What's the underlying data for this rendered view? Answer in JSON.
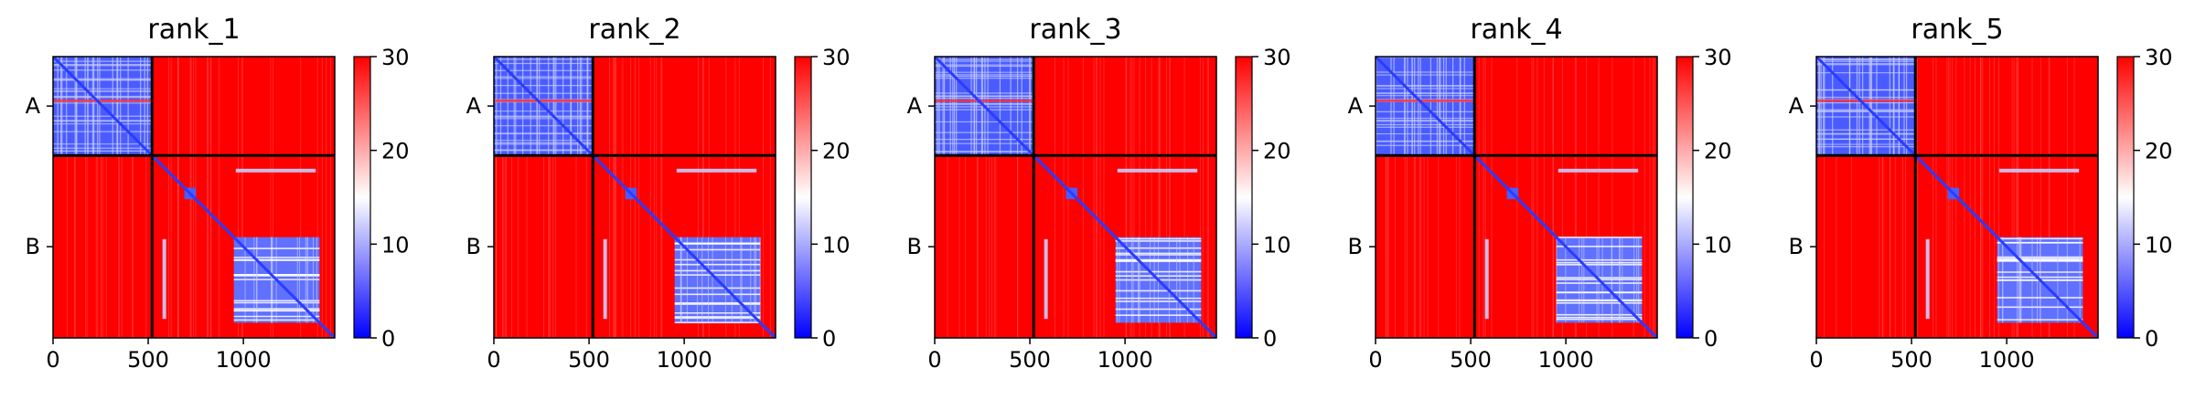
{
  "chart_data": [
    {
      "type": "heatmap",
      "title": "rank_1",
      "xlim": [
        0,
        1480
      ],
      "x_ticks": [
        0,
        500,
        1000
      ],
      "y_tick_labels": [
        "A",
        "B"
      ],
      "chain_boundary": 520,
      "colorbar": {
        "range": [
          0,
          30
        ],
        "ticks": [
          0,
          10,
          20,
          30
        ],
        "colormap": [
          "#0000ff",
          "#ffffff",
          "#ff0000"
        ]
      }
    },
    {
      "type": "heatmap",
      "title": "rank_2",
      "xlim": [
        0,
        1480
      ],
      "x_ticks": [
        0,
        500,
        1000
      ],
      "y_tick_labels": [
        "A",
        "B"
      ],
      "chain_boundary": 520,
      "colorbar": {
        "range": [
          0,
          30
        ],
        "ticks": [
          0,
          10,
          20,
          30
        ],
        "colormap": [
          "#0000ff",
          "#ffffff",
          "#ff0000"
        ]
      }
    },
    {
      "type": "heatmap",
      "title": "rank_3",
      "xlim": [
        0,
        1480
      ],
      "x_ticks": [
        0,
        500,
        1000
      ],
      "y_tick_labels": [
        "A",
        "B"
      ],
      "chain_boundary": 520,
      "colorbar": {
        "range": [
          0,
          30
        ],
        "ticks": [
          0,
          10,
          20,
          30
        ],
        "colormap": [
          "#0000ff",
          "#ffffff",
          "#ff0000"
        ]
      }
    },
    {
      "type": "heatmap",
      "title": "rank_4",
      "xlim": [
        0,
        1480
      ],
      "x_ticks": [
        0,
        500,
        1000
      ],
      "y_tick_labels": [
        "A",
        "B"
      ],
      "chain_boundary": 520,
      "colorbar": {
        "range": [
          0,
          30
        ],
        "ticks": [
          0,
          10,
          20,
          30
        ],
        "colormap": [
          "#0000ff",
          "#ffffff",
          "#ff0000"
        ]
      }
    },
    {
      "type": "heatmap",
      "title": "rank_5",
      "xlim": [
        0,
        1480
      ],
      "x_ticks": [
        0,
        500,
        1000
      ],
      "y_tick_labels": [
        "A",
        "B"
      ],
      "chain_boundary": 520,
      "colorbar": {
        "range": [
          0,
          30
        ],
        "ticks": [
          0,
          10,
          20,
          30
        ],
        "colormap": [
          "#0000ff",
          "#ffffff",
          "#ff0000"
        ]
      }
    }
  ]
}
